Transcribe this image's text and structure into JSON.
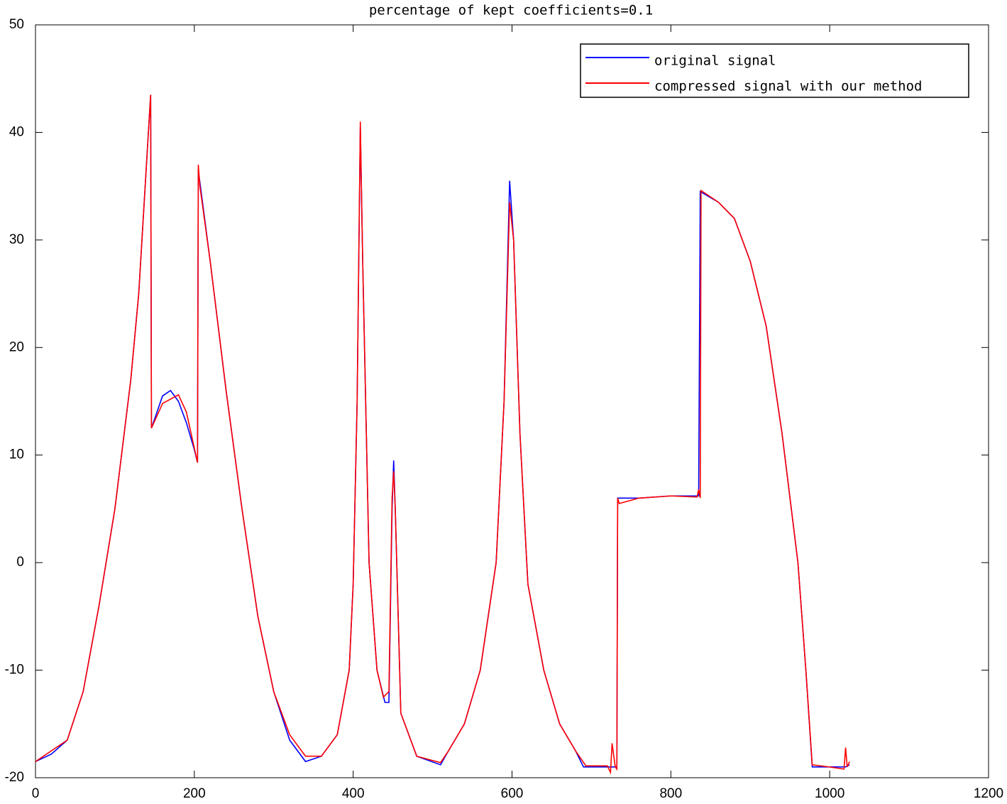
{
  "chart_data": {
    "type": "line",
    "title": "percentage of kept coefficients=0.1",
    "xlim": [
      0,
      1200
    ],
    "xticks": [
      0,
      200,
      400,
      600,
      800,
      1000,
      1200
    ],
    "ylim": [
      -20,
      50
    ],
    "yticks": [
      -20,
      -10,
      0,
      10,
      20,
      30,
      40,
      50
    ],
    "legend": "upper right",
    "series": [
      {
        "name": "original signal",
        "color": "#0000ff",
        "x": [
          0,
          20,
          40,
          60,
          80,
          100,
          120,
          130,
          145,
          146,
          160,
          170,
          180,
          190,
          200,
          204,
          205,
          220,
          240,
          260,
          280,
          300,
          320,
          340,
          360,
          380,
          395,
          400,
          405,
          409,
          412,
          420,
          430,
          440,
          445,
          449,
          451,
          453,
          460,
          480,
          510,
          520,
          540,
          560,
          580,
          590,
          597,
          602,
          610,
          620,
          640,
          660,
          680,
          690,
          730,
          732,
          733,
          760,
          800,
          835,
          837,
          860,
          880,
          900,
          920,
          940,
          960,
          970,
          978,
          1000,
          1020,
          1025
        ],
        "values": [
          -18.5,
          -17.8,
          -16.5,
          -12,
          -4,
          5,
          17,
          25,
          43.5,
          12.5,
          15.5,
          16,
          15,
          13,
          10.5,
          9.3,
          36.5,
          28,
          16,
          5,
          -5,
          -12,
          -16.5,
          -18.5,
          -18,
          -16,
          -10,
          -2,
          15,
          40.5,
          28,
          0,
          -10,
          -13,
          -13,
          5,
          9.5,
          5,
          -14,
          -18,
          -18.8,
          -17.5,
          -15,
          -10,
          0,
          15,
          35.5,
          30,
          12,
          -2,
          -10,
          -15,
          -17.5,
          -19,
          -19,
          -19,
          6,
          6,
          6.2,
          6.2,
          34.5,
          33.5,
          32,
          28,
          22,
          12,
          0,
          -10,
          -19,
          -19,
          -19,
          -18.8
        ]
      },
      {
        "name": "compressed signal with our method",
        "color": "#ff0000",
        "x": [
          0,
          20,
          40,
          60,
          80,
          100,
          120,
          130,
          145,
          146,
          160,
          180,
          190,
          204,
          205,
          207,
          220,
          240,
          260,
          280,
          300,
          320,
          340,
          360,
          380,
          395,
          400,
          405,
          409,
          412,
          420,
          430,
          438,
          445,
          449,
          451,
          453,
          460,
          480,
          510,
          520,
          540,
          560,
          580,
          590,
          597,
          602,
          610,
          620,
          640,
          660,
          680,
          693,
          720,
          724,
          726,
          730,
          732,
          733,
          735,
          760,
          800,
          833,
          835,
          837,
          838,
          860,
          880,
          900,
          920,
          940,
          960,
          970,
          978,
          1000,
          1018,
          1020,
          1022,
          1025
        ],
        "values": [
          -18.5,
          -17.5,
          -16.5,
          -12,
          -4,
          5,
          17,
          25,
          43.5,
          12.5,
          14.8,
          15.6,
          14,
          9.3,
          37,
          35,
          28,
          16,
          5,
          -5,
          -12,
          -16,
          -18,
          -18,
          -16,
          -10,
          -2,
          15,
          41,
          28,
          0,
          -10,
          -12.5,
          -12,
          6,
          8.5,
          5,
          -14,
          -18,
          -18.6,
          -17.5,
          -15,
          -10,
          0,
          15,
          33.5,
          30,
          12,
          -2,
          -10,
          -15,
          -17.5,
          -18.9,
          -18.9,
          -19.5,
          -16.8,
          -19,
          -19.2,
          6,
          5.5,
          6,
          6.2,
          6.1,
          6.8,
          6,
          34.6,
          33.5,
          32,
          28,
          22,
          12,
          0,
          -10,
          -18.8,
          -19,
          -19.2,
          -17.2,
          -19,
          -18.5
        ]
      }
    ]
  }
}
